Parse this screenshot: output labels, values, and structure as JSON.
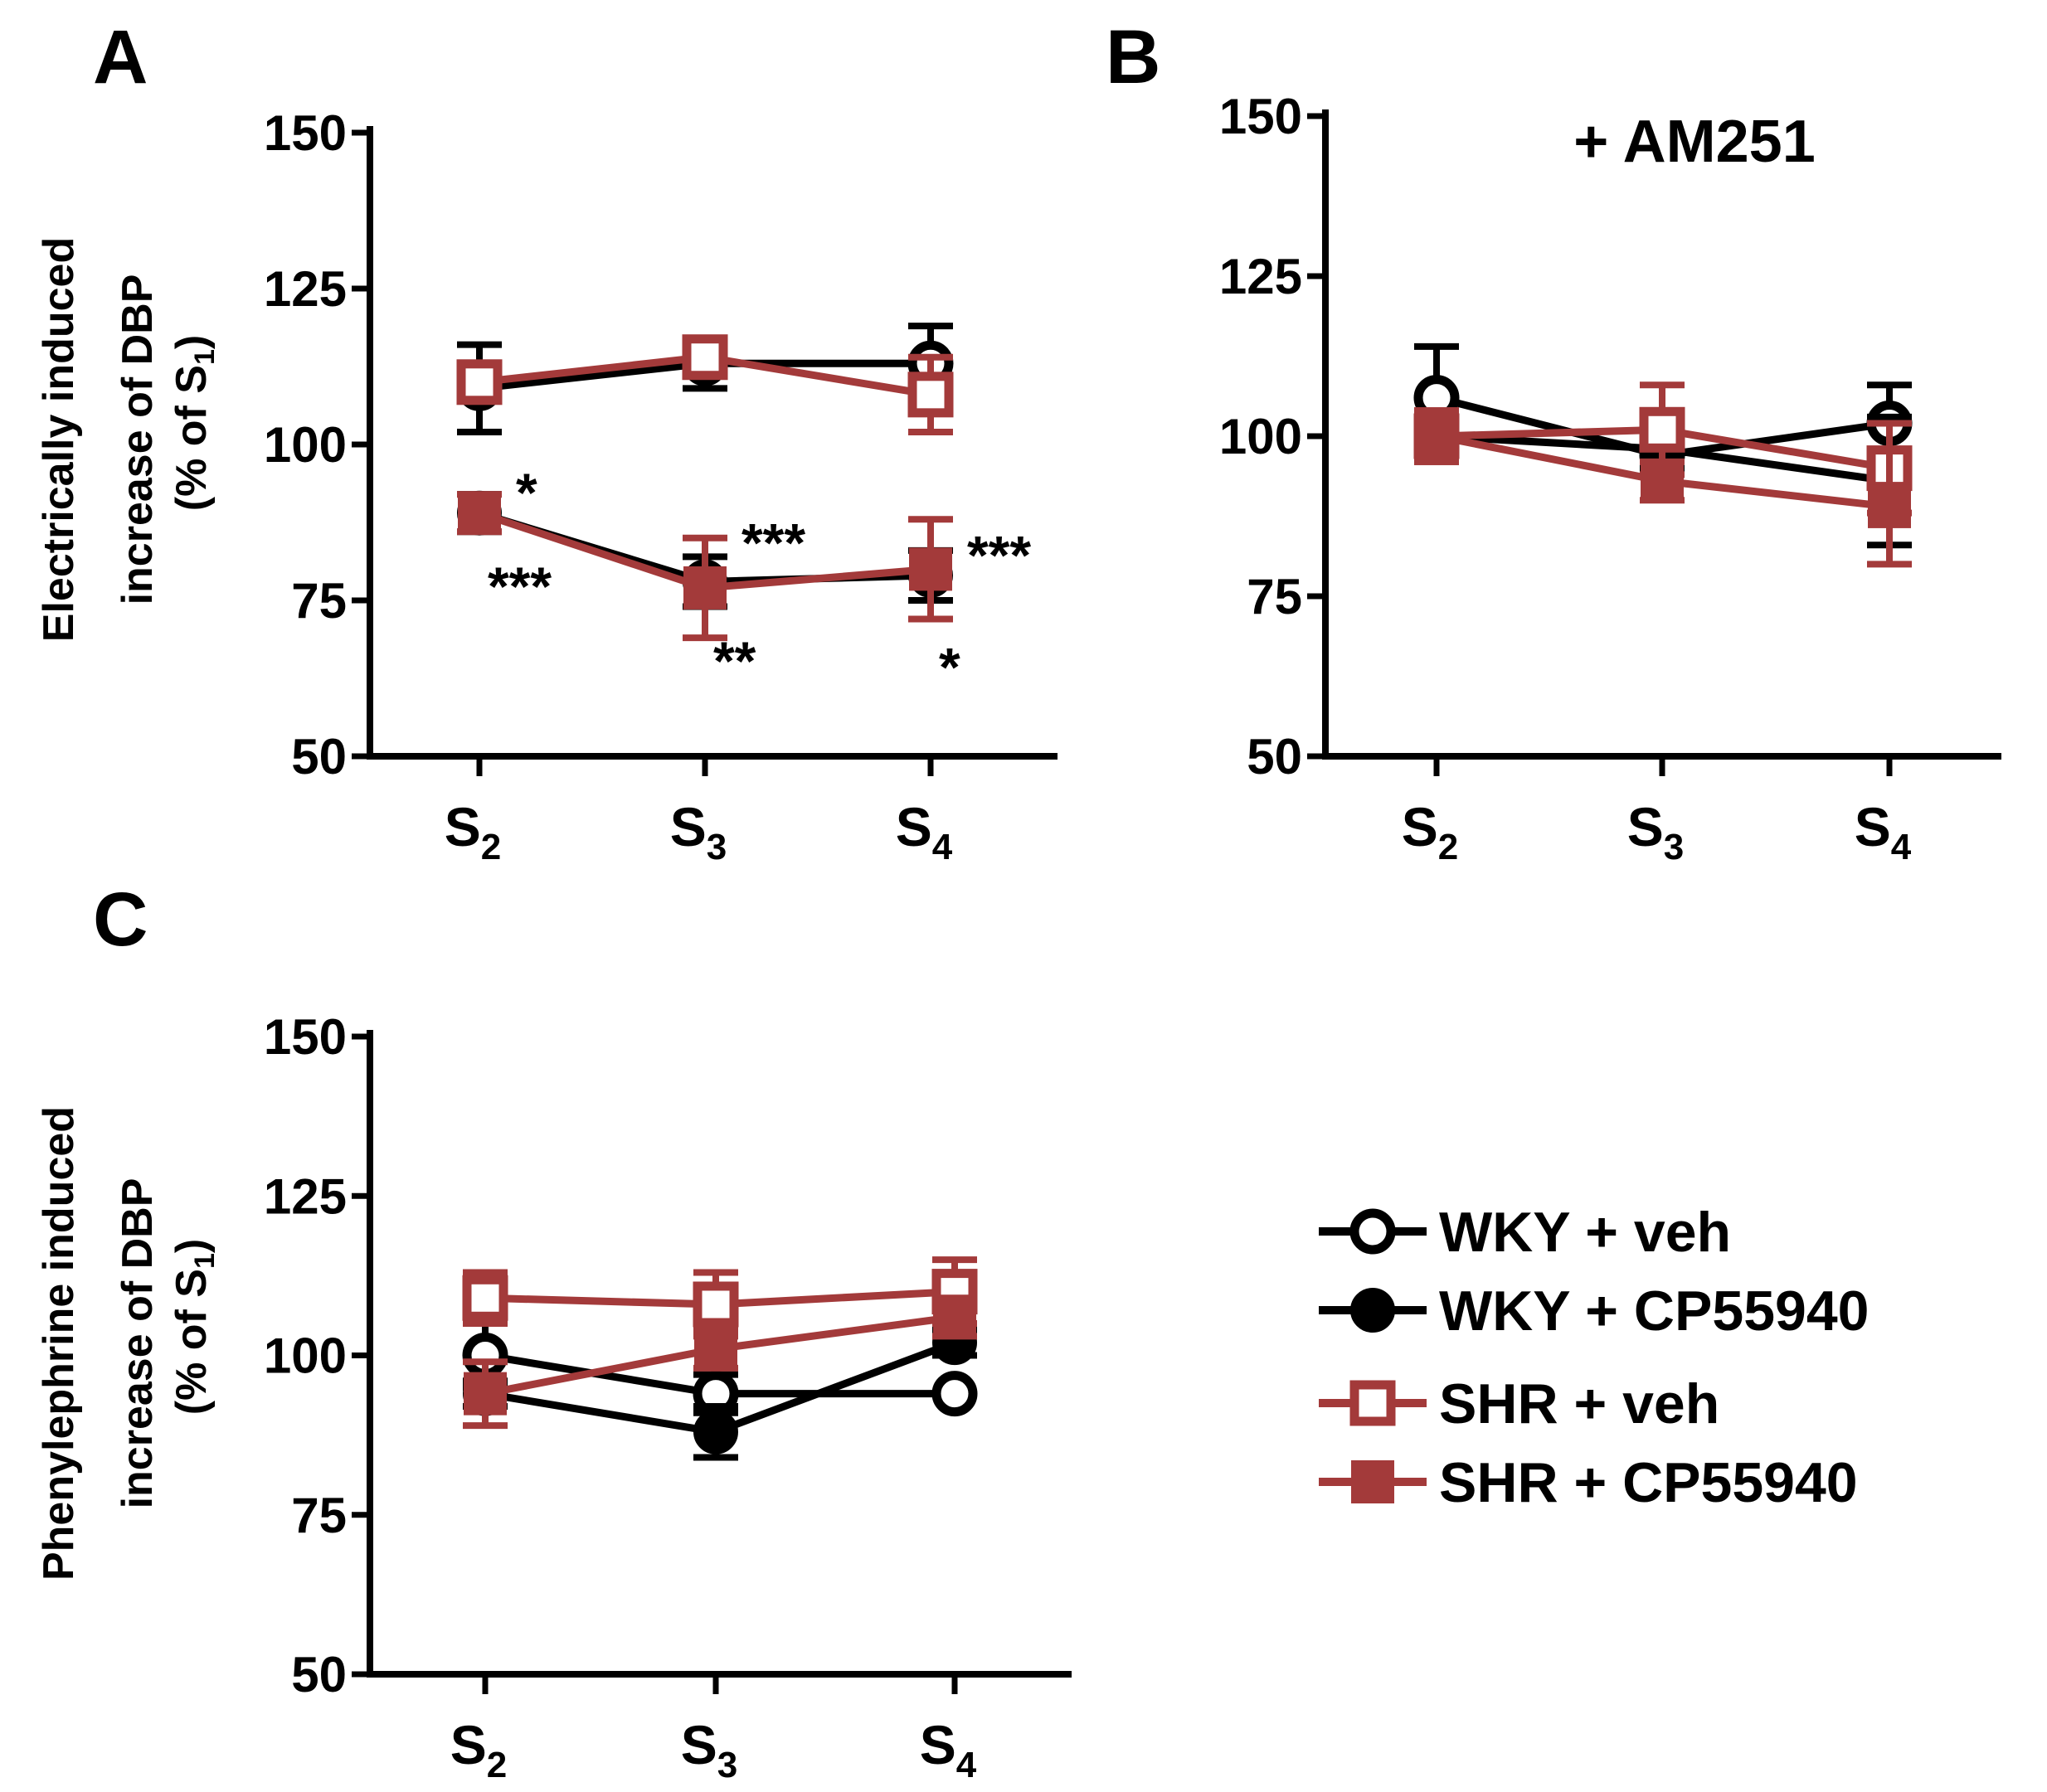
{
  "colors": {
    "black": "#000000",
    "red": "#a33a3a"
  },
  "legend": [
    {
      "label": "WKY + veh",
      "marker": "open-circle",
      "color": "#000000"
    },
    {
      "label": "WKY + CP55940",
      "marker": "filled-circle",
      "color": "#000000"
    },
    {
      "label": "SHR + veh",
      "marker": "open-square",
      "color": "#a33a3a"
    },
    {
      "label": "SHR + CP55940",
      "marker": "filled-square",
      "color": "#a33a3a"
    }
  ],
  "chart_data": [
    {
      "panel": "A",
      "type": "line",
      "title": "",
      "ylabel_line1": "Electrically induced",
      "ylabel_line2": "increase of DBP",
      "ylabel_line3_prefix": "(% of S",
      "ylabel_line3_sub": "1",
      "ylabel_line3_suffix": ")",
      "ylim": [
        50,
        150
      ],
      "yticks": [
        "50",
        "75",
        "100",
        "125",
        "150"
      ],
      "categories": [
        {
          "base": "S",
          "sub": "2"
        },
        {
          "base": "S",
          "sub": "3"
        },
        {
          "base": "S",
          "sub": "4"
        }
      ],
      "series": [
        {
          "name": "WKY + veh",
          "marker": "open-circle",
          "color": "#000000",
          "values": [
            109,
            113,
            113
          ],
          "errors": [
            7,
            4,
            6
          ]
        },
        {
          "name": "WKY + CP55940",
          "marker": "filled-circle",
          "color": "#000000",
          "values": [
            89,
            78,
            79
          ],
          "errors": [
            3,
            4,
            4
          ]
        },
        {
          "name": "SHR + veh",
          "marker": "open-square",
          "color": "#a33a3a",
          "values": [
            110,
            114,
            108
          ],
          "errors": [
            3,
            3,
            6
          ]
        },
        {
          "name": "SHR + CP55940",
          "marker": "filled-square",
          "color": "#a33a3a",
          "values": [
            89,
            77,
            80
          ],
          "errors": [
            3,
            8,
            8
          ]
        }
      ],
      "annotations": [
        {
          "text": "*",
          "cat": 0,
          "y": 94,
          "pos": "upper-right"
        },
        {
          "text": "***",
          "cat": 0,
          "y": 79,
          "pos": "lower-right"
        },
        {
          "text": "***",
          "cat": 1,
          "y": 86,
          "pos": "upper-right"
        },
        {
          "text": "**",
          "cat": 1,
          "y": 67,
          "pos": "lower-right"
        },
        {
          "text": "***",
          "cat": 2,
          "y": 84,
          "pos": "upper-right"
        },
        {
          "text": "*",
          "cat": 2,
          "y": 66,
          "pos": "lower-right"
        }
      ]
    },
    {
      "panel": "B",
      "type": "line",
      "title": "+ AM251",
      "ylabel_line1": "",
      "ylabel_line2": "",
      "ylabel_line3_prefix": "",
      "ylabel_line3_sub": "",
      "ylabel_line3_suffix": "",
      "ylim": [
        50,
        150
      ],
      "yticks": [
        "50",
        "75",
        "100",
        "125",
        "150"
      ],
      "categories": [
        {
          "base": "S",
          "sub": "2"
        },
        {
          "base": "S",
          "sub": "3"
        },
        {
          "base": "S",
          "sub": "4"
        }
      ],
      "series": [
        {
          "name": "WKY + veh",
          "marker": "open-circle",
          "color": "#000000",
          "values": [
            106,
            97,
            102
          ],
          "errors": [
            8,
            3,
            6
          ]
        },
        {
          "name": "WKY + CP55940",
          "marker": "filled-circle",
          "color": "#000000",
          "values": [
            100,
            98,
            93
          ],
          "errors": [
            3,
            3,
            10
          ]
        },
        {
          "name": "SHR + veh",
          "marker": "open-square",
          "color": "#a33a3a",
          "values": [
            100,
            101,
            95
          ],
          "errors": [
            4,
            7,
            7
          ]
        },
        {
          "name": "SHR + CP55940",
          "marker": "filled-square",
          "color": "#a33a3a",
          "values": [
            100,
            93,
            89
          ],
          "errors": [
            4,
            3,
            9
          ]
        }
      ],
      "annotations": []
    },
    {
      "panel": "C",
      "type": "line",
      "title": "",
      "ylabel_line1": "Phenylephrine induced",
      "ylabel_line2": "increase of DBP",
      "ylabel_line3_prefix": "(% of S",
      "ylabel_line3_sub": "1",
      "ylabel_line3_suffix": ")",
      "ylim": [
        50,
        150
      ],
      "yticks": [
        "50",
        "75",
        "100",
        "125",
        "150"
      ],
      "categories": [
        {
          "base": "S",
          "sub": "2"
        },
        {
          "base": "S",
          "sub": "3"
        },
        {
          "base": "S",
          "sub": "4"
        }
      ],
      "series": [
        {
          "name": "WKY + veh",
          "marker": "open-circle",
          "color": "#000000",
          "values": [
            100,
            94,
            94
          ],
          "errors": [
            5,
            3,
            0
          ]
        },
        {
          "name": "WKY + CP55940",
          "marker": "filled-circle",
          "color": "#000000",
          "values": [
            94,
            88,
            102
          ],
          "errors": [
            2,
            4,
            2
          ]
        },
        {
          "name": "SHR + veh",
          "marker": "open-square",
          "color": "#a33a3a",
          "values": [
            109,
            108,
            110
          ],
          "errors": [
            4,
            5,
            5
          ]
        },
        {
          "name": "SHR + CP55940",
          "marker": "filled-square",
          "color": "#a33a3a",
          "values": [
            94,
            101,
            106
          ],
          "errors": [
            5,
            3,
            3
          ]
        }
      ],
      "annotations": []
    }
  ]
}
